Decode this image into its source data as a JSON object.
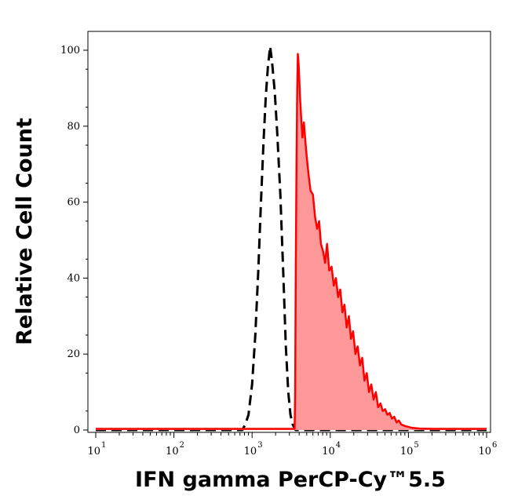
{
  "chart_data": {
    "type": "area",
    "xlabel": "IFN gamma PerCP-Cy™5.5",
    "ylabel": "Relative Cell Count",
    "x_scale": "log",
    "xlim": [
      10,
      1000000
    ],
    "ylim": [
      0,
      100
    ],
    "x_ticks": [
      {
        "value": 10,
        "base": "10",
        "exp": "1"
      },
      {
        "value": 100,
        "base": "10",
        "exp": "2"
      },
      {
        "value": 1000,
        "base": "10",
        "exp": "3"
      },
      {
        "value": 10000,
        "base": "10",
        "exp": "4"
      },
      {
        "value": 100000,
        "base": "10",
        "exp": "5"
      },
      {
        "value": 1000000,
        "base": "10",
        "exp": "6"
      }
    ],
    "y_ticks": [
      {
        "value": 0,
        "label": "0"
      },
      {
        "value": 20,
        "label": "20"
      },
      {
        "value": 40,
        "label": "40"
      },
      {
        "value": 60,
        "label": "60"
      },
      {
        "value": 80,
        "label": "80"
      },
      {
        "value": 100,
        "label": "100"
      }
    ],
    "grid": false,
    "legend": "none",
    "series": [
      {
        "style": "dashed",
        "color": "#000000",
        "fill": "none",
        "points": [
          [
            10,
            0
          ],
          [
            750,
            0
          ],
          [
            820,
            1.5
          ],
          [
            900,
            4
          ],
          [
            1000,
            12
          ],
          [
            1100,
            25
          ],
          [
            1200,
            42
          ],
          [
            1300,
            60
          ],
          [
            1400,
            76
          ],
          [
            1500,
            88
          ],
          [
            1600,
            96
          ],
          [
            1700,
            101
          ],
          [
            1800,
            97
          ],
          [
            1950,
            89
          ],
          [
            2100,
            78
          ],
          [
            2300,
            62
          ],
          [
            2500,
            42
          ],
          [
            2700,
            22
          ],
          [
            2900,
            10
          ],
          [
            3100,
            4
          ],
          [
            3300,
            1.5
          ],
          [
            3500,
            0.5
          ],
          [
            3600,
            0
          ],
          [
            1000000,
            0
          ]
        ]
      },
      {
        "style": "solid",
        "color": "#ff0000",
        "fill": "#ff9999",
        "points": [
          [
            10,
            0.3
          ],
          [
            3500,
            0.3
          ],
          [
            3560,
            10
          ],
          [
            3620,
            40
          ],
          [
            3700,
            70
          ],
          [
            3780,
            90
          ],
          [
            3850,
            99
          ],
          [
            3950,
            96
          ],
          [
            4100,
            88
          ],
          [
            4250,
            82
          ],
          [
            4400,
            77
          ],
          [
            4600,
            81
          ],
          [
            4800,
            76
          ],
          [
            5000,
            72
          ],
          [
            5300,
            67
          ],
          [
            5600,
            63
          ],
          [
            6000,
            62
          ],
          [
            6400,
            56
          ],
          [
            6800,
            53
          ],
          [
            7200,
            55
          ],
          [
            7600,
            49
          ],
          [
            8100,
            47
          ],
          [
            8600,
            44
          ],
          [
            9100,
            49
          ],
          [
            9700,
            42
          ],
          [
            10400,
            43
          ],
          [
            11100,
            38
          ],
          [
            11800,
            40
          ],
          [
            12600,
            35
          ],
          [
            13400,
            37
          ],
          [
            14300,
            31
          ],
          [
            15200,
            33
          ],
          [
            16200,
            27
          ],
          [
            17300,
            30
          ],
          [
            18400,
            24
          ],
          [
            19600,
            26
          ],
          [
            21000,
            20
          ],
          [
            22400,
            22
          ],
          [
            24000,
            17
          ],
          [
            25600,
            19
          ],
          [
            27400,
            13
          ],
          [
            29300,
            15
          ],
          [
            31300,
            10
          ],
          [
            33500,
            12
          ],
          [
            35800,
            8
          ],
          [
            38300,
            10
          ],
          [
            41000,
            6
          ],
          [
            43900,
            7
          ],
          [
            47000,
            5
          ],
          [
            50300,
            5.5
          ],
          [
            53800,
            4
          ],
          [
            57600,
            4.5
          ],
          [
            61600,
            3
          ],
          [
            65900,
            3.5
          ],
          [
            70500,
            2
          ],
          [
            75400,
            2.5
          ],
          [
            80700,
            1.5
          ],
          [
            86400,
            1.2
          ],
          [
            92400,
            1
          ],
          [
            110000,
            0.6
          ],
          [
            140000,
            0.4
          ],
          [
            200000,
            0.3
          ],
          [
            1000000,
            0.3
          ]
        ]
      }
    ]
  }
}
